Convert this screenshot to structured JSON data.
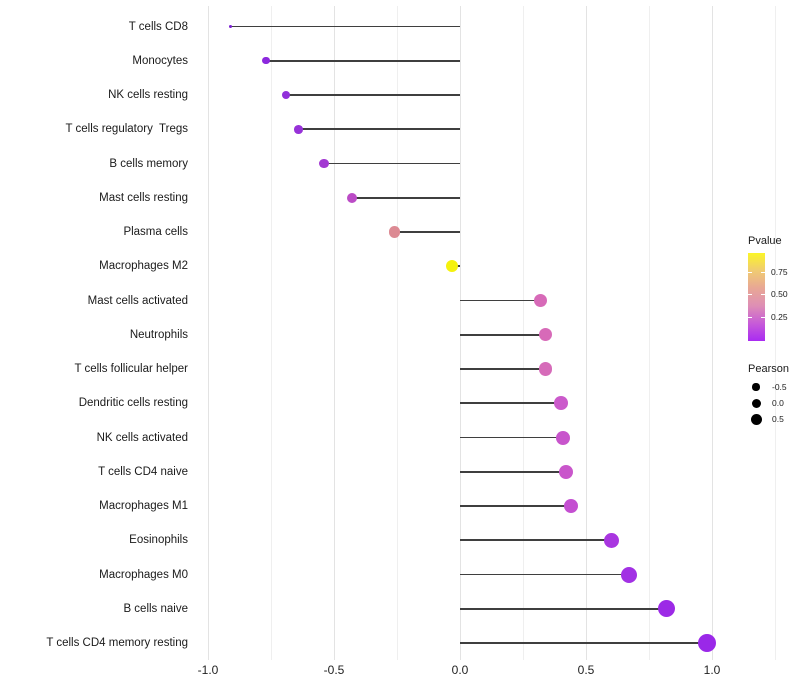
{
  "chart_data": {
    "type": "lollipop",
    "title": "",
    "xlabel": "",
    "ylabel": "",
    "grid": "vertical-only",
    "xlim": [
      -1.06,
      1.31
    ],
    "x_major_ticks": [
      -1.0,
      -0.5,
      0.0,
      0.5,
      1.0
    ],
    "x_major_tick_labels": [
      "-1.0",
      "-0.5",
      "0.0",
      "0.5",
      "1.0"
    ],
    "x_minor_ticks": [
      -0.75,
      -0.25,
      0.25,
      0.75,
      1.25
    ],
    "categories": [
      "T cells CD8",
      "Monocytes",
      "NK cells resting",
      "T cells regulatory  Tregs",
      "B cells memory",
      "Mast cells resting",
      "Plasma cells",
      "Macrophages M2",
      "Mast cells activated",
      "Neutrophils",
      "T cells follicular helper",
      "Dendritic cells resting",
      "NK cells activated",
      "T cells CD4 naive",
      "Macrophages M1",
      "Eosinophils",
      "Macrophages M0",
      "B cells naive",
      "T cells CD4 memory resting"
    ],
    "series": [
      {
        "name": "Pearson",
        "values": [
          -0.91,
          -0.77,
          -0.69,
          -0.64,
          -0.54,
          -0.43,
          -0.26,
          -0.03,
          0.32,
          0.34,
          0.34,
          0.4,
          0.41,
          0.42,
          0.44,
          0.6,
          0.67,
          0.82,
          0.98
        ]
      }
    ],
    "point_colors": [
      "#7b1fd2",
      "#8c28de",
      "#9130da",
      "#9732d8",
      "#a33ad2",
      "#bb4bc6",
      "#dc8a93",
      "#f5f20d",
      "#d76ab8",
      "#d76ab8",
      "#d66bb9",
      "#cb5acb",
      "#c855cc",
      "#c956cb",
      "#c44fd1",
      "#a936e0",
      "#a231e4",
      "#9c2ae6",
      "#9a28e8"
    ],
    "point_radii": [
      1.6,
      3.6,
      4.0,
      4.3,
      4.6,
      5.0,
      5.6,
      6.0,
      6.6,
      6.7,
      6.7,
      6.9,
      7.0,
      7.0,
      7.2,
      7.7,
      8.0,
      8.5,
      9.2
    ],
    "stem_color": "#3f3f3f",
    "legend": {
      "pvalue": {
        "title": "Pvalue",
        "tick_labels": [
          "0.75",
          "0.50",
          "0.25"
        ],
        "gradient_bottom_to_top": [
          "#a92bf2",
          "#c75bd8",
          "#de8fb5",
          "#e8a795",
          "#f0cb72",
          "#fbf527"
        ]
      },
      "pearson": {
        "title": "Pearson",
        "items": [
          {
            "label": "-0.5",
            "radius": 3.6
          },
          {
            "label": "0.0",
            "radius": 4.5
          },
          {
            "label": "0.5",
            "radius": 5.5
          }
        ]
      }
    }
  }
}
